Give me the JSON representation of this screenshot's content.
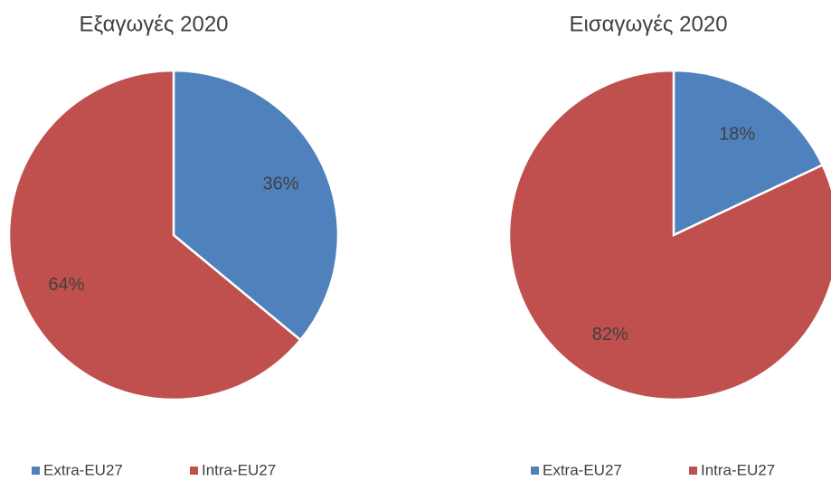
{
  "chart_data": [
    {
      "type": "pie",
      "title": "Εξαγωγές 2020",
      "categories": [
        "Extra-EU27",
        "Intra-EU27"
      ],
      "values": [
        36,
        64
      ],
      "value_labels": [
        "36%",
        "64%"
      ],
      "colors": [
        "#4f81bd",
        "#c0504d"
      ],
      "legend": "bottom"
    },
    {
      "type": "pie",
      "title": "Εισαγωγές 2020",
      "categories": [
        "Extra-EU27",
        "Intra-EU27"
      ],
      "values": [
        18,
        82
      ],
      "value_labels": [
        "18%",
        "82%"
      ],
      "colors": [
        "#4f81bd",
        "#c0504d"
      ],
      "legend": "bottom"
    }
  ]
}
